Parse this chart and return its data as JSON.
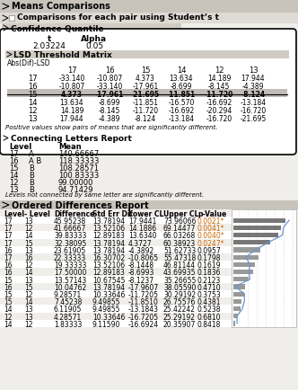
{
  "title_main": "Means Comparisons",
  "title_sub": "Comparisons for each pair using Student’s t",
  "section_confidence": "Confidence Quantile",
  "t_value": "2.03224",
  "alpha_value": "0.05",
  "section_lsd": "LSD Threshold Matrix",
  "abs_label": "Abs(Dif)-LSD",
  "lsd_cols": [
    "17",
    "16",
    "15",
    "14",
    "12",
    "13"
  ],
  "lsd_rows": [
    "17",
    "16",
    "15",
    "14",
    "12",
    "13"
  ],
  "lsd_matrix": [
    [
      "-33.140",
      "-10.807",
      "4.373",
      "13.634",
      "14.189",
      "17.944"
    ],
    [
      "-10.807",
      "-33.140",
      "-17.961",
      "-8.699",
      "-8.145",
      "-4.389"
    ],
    [
      "4.373",
      "-17.961",
      "-21.695",
      "-11.851",
      "-11.720",
      "-8.124"
    ],
    [
      "13.634",
      "-8.699",
      "-11.851",
      "-16.570",
      "-16.692",
      "-13.184"
    ],
    [
      "14.189",
      "-8.145",
      "-11.720",
      "-16.692",
      "-20.294",
      "-16.720"
    ],
    [
      "17.944",
      "-4.389",
      "-8.124",
      "-13.184",
      "-16.720",
      "-21.695"
    ]
  ],
  "lsd_note": "Positive values show pairs of means that are significantly different.",
  "section_letters": "Connecting Letters Report",
  "letters_data": [
    [
      "17",
      "A",
      "140.66667"
    ],
    [
      "16",
      "A B",
      "118.33333"
    ],
    [
      "15",
      "B",
      "108.28571"
    ],
    [
      "14",
      "B",
      "100.83333"
    ],
    [
      "12",
      "B",
      "99.00000"
    ],
    [
      "13",
      "B",
      "94.71429"
    ]
  ],
  "letters_note": "Levels not connected by same letter are significantly different.",
  "section_ordered": "Ordered Differences Report",
  "ordered_header": [
    "Level",
    "- Level",
    "Difference",
    "Std Err Dif",
    "Lower CL",
    "Upper CL",
    "p-Value"
  ],
  "ordered_data": [
    [
      "17",
      "13",
      "45.95238",
      "13.78194",
      "17.9441",
      "73.96066",
      "0.0021*"
    ],
    [
      "17",
      "12",
      "41.66667",
      "13.52106",
      "14.1886",
      "69.14477",
      "0.0041*"
    ],
    [
      "17",
      "14",
      "39.83333",
      "12.89183",
      "13.6340",
      "66.03268",
      "0.0040*"
    ],
    [
      "17",
      "15",
      "32.38095",
      "13.78194",
      "4.3727",
      "60.38923",
      "0.0247*"
    ],
    [
      "16",
      "13",
      "23.61905",
      "13.78194",
      "-4.3892",
      "51.62733",
      "0.0957"
    ],
    [
      "17",
      "16",
      "22.33333",
      "16.30702",
      "-10.8065",
      "55.47318",
      "0.1798"
    ],
    [
      "16",
      "12",
      "19.33333",
      "13.52106",
      "-8.1448",
      "46.81144",
      "0.1619"
    ],
    [
      "16",
      "14",
      "17.50000",
      "12.89183",
      "-8.6993",
      "43.69935",
      "0.1836"
    ],
    [
      "15",
      "13",
      "13.57143",
      "10.67545",
      "-8.1237",
      "35.26655",
      "0.2123"
    ],
    [
      "16",
      "15",
      "10.04762",
      "13.78194",
      "-17.9607",
      "38.05590",
      "0.4710"
    ],
    [
      "15",
      "12",
      "9.28571",
      "10.33646",
      "-11.7205",
      "30.29192",
      "0.3753"
    ],
    [
      "15",
      "14",
      "7.45238",
      "9.49855",
      "-11.8510",
      "26.75576",
      "0.4381"
    ],
    [
      "14",
      "13",
      "6.11905",
      "9.49855",
      "-13.1843",
      "25.42242",
      "0.5238"
    ],
    [
      "12",
      "13",
      "4.28571",
      "10.33646",
      "-16.7205",
      "25.29192",
      "0.6810"
    ],
    [
      "14",
      "12",
      "1.83333",
      "9.11590",
      "-16.6924",
      "20.35907",
      "0.8418"
    ]
  ],
  "highlight_rows": [
    0,
    1,
    2,
    3
  ],
  "pvalue_color_highlight": "#cc6600",
  "bg_color": "#f0eeea",
  "header_bg": "#d0ccc4",
  "section_bg": "#c8c4bc"
}
